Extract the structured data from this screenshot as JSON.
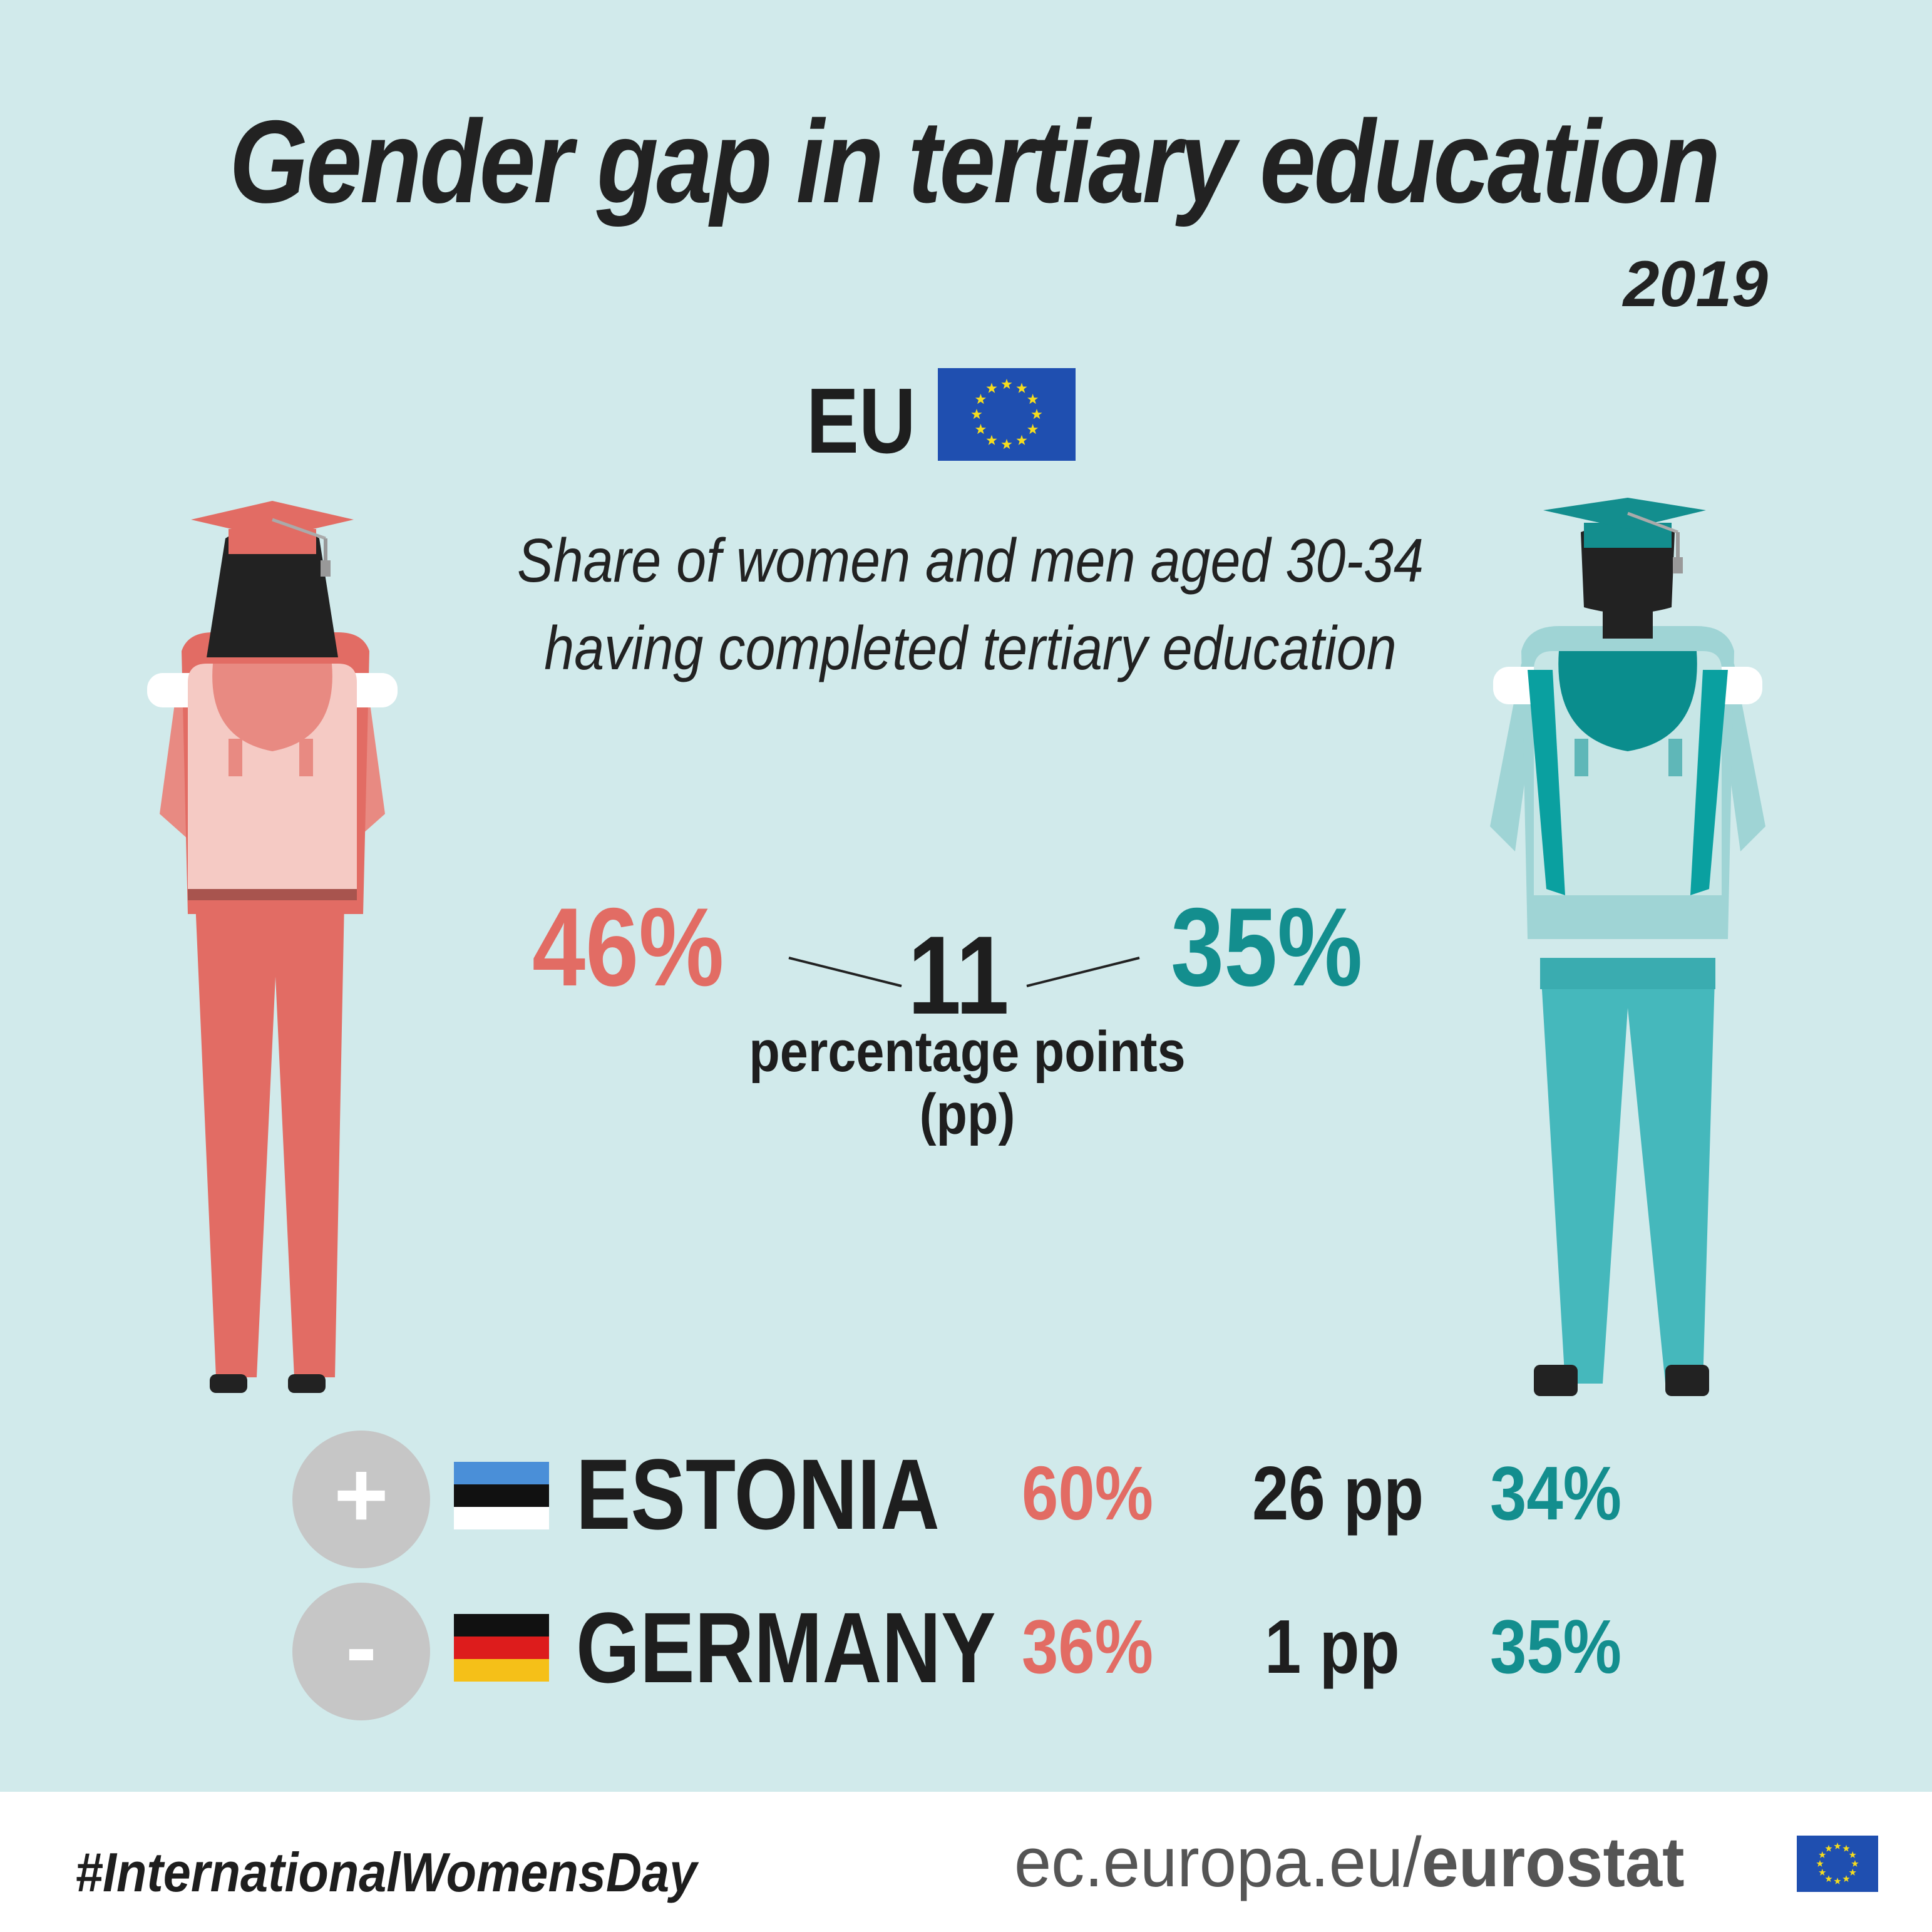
{
  "title": "Gender gap in tertiary education",
  "year": "2019",
  "eu": {
    "label": "EU",
    "icon": "eu-flag-icon",
    "flag_color": "#1f4fb0",
    "star_color": "#f5dc1e"
  },
  "subtitle": {
    "line1": "Share of women and men aged 30-34",
    "line2": "having completed tertiary education"
  },
  "eu_values": {
    "women": "46%",
    "men": "35%",
    "gap": "11",
    "gap_unit_line1": "percentage points",
    "gap_unit_line2": "(pp)"
  },
  "colors": {
    "women": "#e26c64",
    "men": "#138e8e",
    "background": "#d1eaeb",
    "text": "#1e1e1e"
  },
  "rows": [
    {
      "sign": "+",
      "country": "ESTONIA",
      "flag_icon": "estonia-flag-icon",
      "women": "60%",
      "gap": "26 pp",
      "men": "34%"
    },
    {
      "sign": "-",
      "country": "GERMANY",
      "flag_icon": "germany-flag-icon",
      "women": "36%",
      "gap": "1 pp",
      "men": "35%"
    }
  ],
  "footer": {
    "hashtag": "#InternationalWomensDay",
    "site_prefix": "ec.europa.eu/",
    "site_brand": "eurostat"
  }
}
